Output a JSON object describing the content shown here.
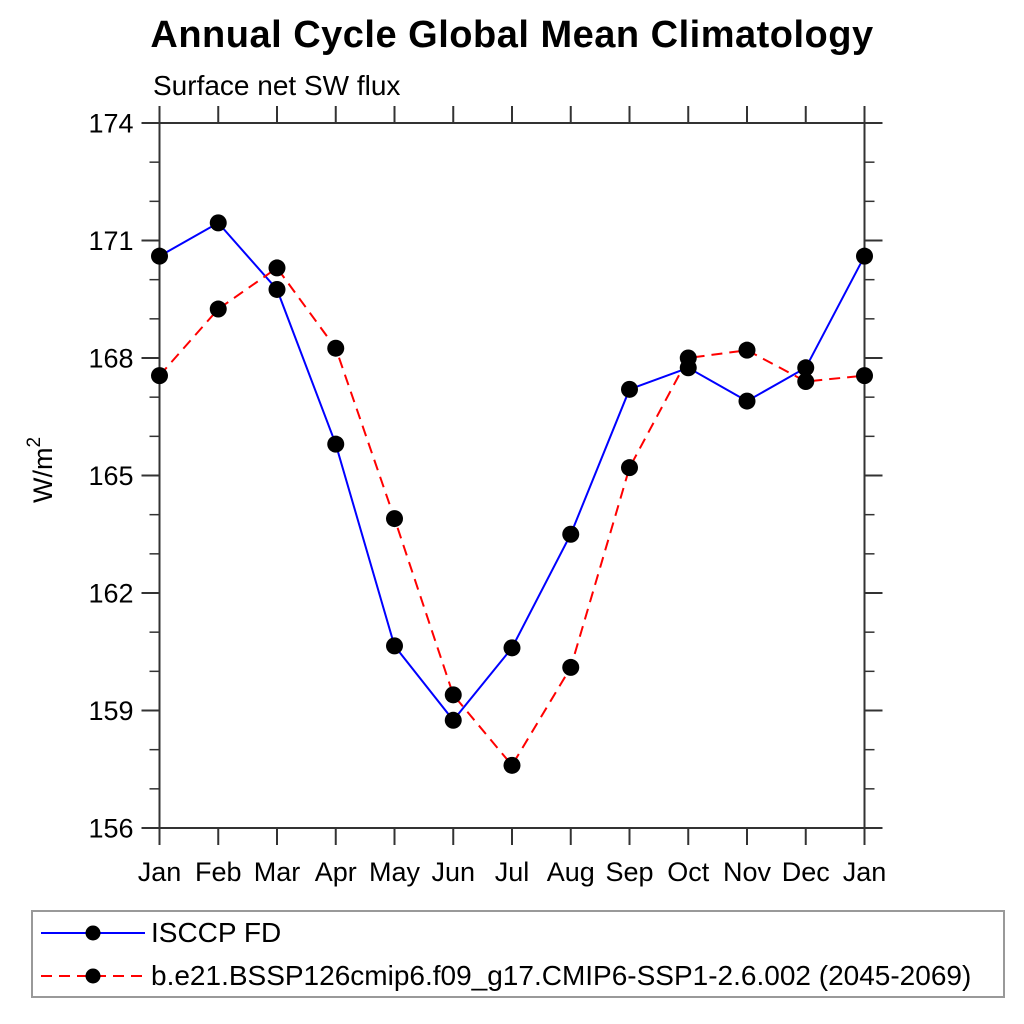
{
  "title": "Annual Cycle Global Mean Climatology",
  "subtitle": "Surface net SW flux",
  "colors": {
    "series1": "#0000ff",
    "series2": "#ff0000",
    "marker": "#000000",
    "axis": "#333333",
    "legend_border": "#999999"
  },
  "chart_data": {
    "type": "line",
    "title": "Annual Cycle Global Mean Climatology",
    "subtitle": "Surface net SW flux",
    "xlabel": "",
    "ylabel": "W/m²",
    "ylabel_parts": {
      "base": "W/m",
      "sup": "2"
    },
    "ylim": [
      156,
      174
    ],
    "y_major_ticks": [
      156,
      159,
      162,
      165,
      168,
      171,
      174
    ],
    "y_minor_step": 1,
    "grid": false,
    "legend_position": "bottom",
    "categories": [
      "Jan",
      "Feb",
      "Mar",
      "Apr",
      "May",
      "Jun",
      "Jul",
      "Aug",
      "Sep",
      "Oct",
      "Nov",
      "Dec",
      "Jan"
    ],
    "series": [
      {
        "name": "ISCCP FD",
        "color": "#0000ff",
        "line_style": "solid",
        "marker": "filled-circle",
        "marker_color": "#000000",
        "values": [
          170.6,
          171.45,
          169.75,
          165.8,
          160.65,
          158.75,
          160.6,
          163.5,
          167.2,
          167.75,
          166.9,
          167.75,
          170.6
        ]
      },
      {
        "name": "b.e21.BSSP126cmip6.f09_g17.CMIP6-SSP1-2.6.002 (2045-2069)",
        "color": "#ff0000",
        "line_style": "dashed",
        "marker": "filled-circle",
        "marker_color": "#000000",
        "values": [
          167.55,
          169.25,
          170.3,
          168.25,
          163.9,
          159.4,
          157.6,
          160.1,
          165.2,
          168.0,
          168.2,
          167.4,
          167.55
        ]
      }
    ]
  }
}
